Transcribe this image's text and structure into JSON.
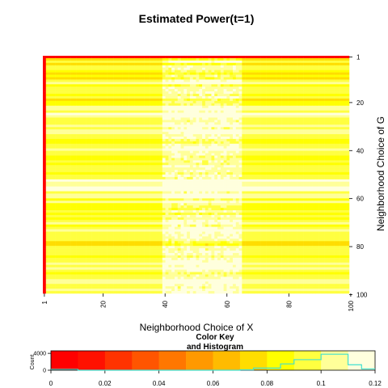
{
  "chart_data": {
    "type": "heatmap",
    "title": "Estimated Power(t=1)",
    "xlabel": "Neighborhood Choice of X",
    "ylabel": "Neighborhood Choice of G",
    "x_ticks": [
      "1",
      "20",
      "40",
      "60",
      "80",
      "100"
    ],
    "y_ticks": [
      "1",
      "20",
      "40",
      "60",
      "80",
      "100"
    ],
    "x_range": [
      1,
      100
    ],
    "y_range": [
      1,
      100
    ],
    "cells_x": 100,
    "cells_y": 100,
    "value_range": [
      0,
      0.12
    ],
    "palette": [
      "#ff0000",
      "#ff1100",
      "#ff3300",
      "#ff5500",
      "#ff7700",
      "#ff9900",
      "#ffbb00",
      "#ffdd00",
      "#ffff00",
      "#ffff40",
      "#ffff99",
      "#ffffdd"
    ],
    "row_profile": {
      "description_points_y": [
        1,
        2,
        3,
        4,
        5,
        6,
        8,
        10,
        12,
        14,
        16,
        18,
        20,
        22,
        25,
        28,
        30,
        33,
        36,
        40,
        44,
        48,
        52,
        54,
        56,
        58,
        60,
        63,
        66,
        70,
        74,
        78,
        80,
        84,
        88,
        90,
        92,
        95,
        98,
        100
      ],
      "base_value": [
        0.095,
        0.08,
        0.1,
        0.082,
        0.09,
        0.1,
        0.078,
        0.088,
        0.095,
        0.085,
        0.1,
        0.09,
        0.083,
        0.095,
        0.11,
        0.09,
        0.1,
        0.095,
        0.088,
        0.1,
        0.095,
        0.09,
        0.1,
        0.115,
        0.112,
        0.1,
        0.095,
        0.09,
        0.085,
        0.092,
        0.1,
        0.088,
        0.082,
        0.095,
        0.1,
        0.11,
        0.09,
        0.1,
        0.095,
        0.105
      ]
    },
    "center_band": {
      "x_from": 40,
      "x_to": 65,
      "boost": 0.015
    },
    "left_column_value": 0.0,
    "top_row_value": 0.0,
    "color_key": {
      "title_line1": "Color Key",
      "title_line2": "and Histogram",
      "x_ticks": [
        "0",
        "0.02",
        "0.04",
        "0.06",
        "0.08",
        "0.1",
        "0.12"
      ],
      "x_tick_values": [
        0,
        0.02,
        0.04,
        0.06,
        0.08,
        0.1,
        0.12
      ],
      "y_label": "Count",
      "y_ticks": [
        "0",
        "4000"
      ],
      "y_tick_values": [
        0,
        4000
      ],
      "y_max": 4600,
      "histogram_line_color": "#40e0d0",
      "histogram": {
        "bin_edges": [
          0,
          0.01,
          0.02,
          0.03,
          0.04,
          0.05,
          0.06,
          0.07,
          0.075,
          0.085,
          0.09,
          0.1,
          0.11,
          0.115,
          0.12
        ],
        "counts": [
          200,
          0,
          0,
          0,
          0,
          0,
          0,
          100,
          500,
          1500,
          2500,
          3800,
          1300,
          300
        ]
      }
    }
  }
}
